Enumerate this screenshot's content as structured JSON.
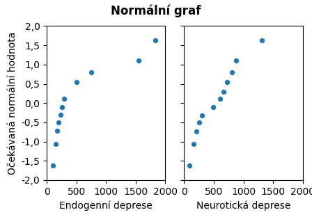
{
  "chart_data": [
    {
      "type": "scatter",
      "title": "Normální graf",
      "xlabel": "Endogenní deprese",
      "ylabel": "Očekávaná normální hodnota",
      "x": [
        100,
        150,
        175,
        200,
        230,
        260,
        290,
        500,
        750,
        1550,
        1830
      ],
      "values": [
        -1.63,
        -1.07,
        -0.72,
        -0.5,
        -0.31,
        -0.1,
        0.12,
        0.55,
        0.8,
        1.1,
        1.62
      ],
      "xlim": [
        0,
        2000
      ],
      "ylim": [
        -2.0,
        2.0
      ],
      "xticks": [
        0,
        500,
        1000,
        1500,
        2000
      ],
      "yticks": [
        {
          "value": -2.0,
          "label": "-2,0"
        },
        {
          "value": -1.5,
          "label": "-1,5"
        },
        {
          "value": -1.0,
          "label": "-1,0"
        },
        {
          "value": -0.5,
          "label": "-0,5"
        },
        {
          "value": 0.0,
          "label": "0,0"
        },
        {
          "value": 0.5,
          "label": "0,5"
        },
        {
          "value": 1.0,
          "label": "1,0"
        },
        {
          "value": 1.5,
          "label": "1,5"
        },
        {
          "value": 2.0,
          "label": "2,0"
        }
      ]
    },
    {
      "type": "scatter",
      "xlabel": "Neurotická deprese",
      "x": [
        90,
        155,
        210,
        255,
        305,
        490,
        600,
        660,
        720,
        800,
        880,
        1310
      ],
      "values": [
        -1.63,
        -1.07,
        -0.73,
        -0.5,
        -0.32,
        -0.1,
        0.12,
        0.3,
        0.55,
        0.8,
        1.1,
        1.62
      ],
      "xlim": [
        0,
        2000
      ],
      "ylim": [
        -2.0,
        2.0
      ],
      "xticks": [
        0,
        500,
        1000,
        1500,
        2000
      ],
      "yticks": [
        -2.0,
        -1.5,
        -1.0,
        -0.5,
        0.0,
        0.5,
        1.0,
        1.5,
        2.0
      ],
      "tick_labels": "x"
    }
  ]
}
